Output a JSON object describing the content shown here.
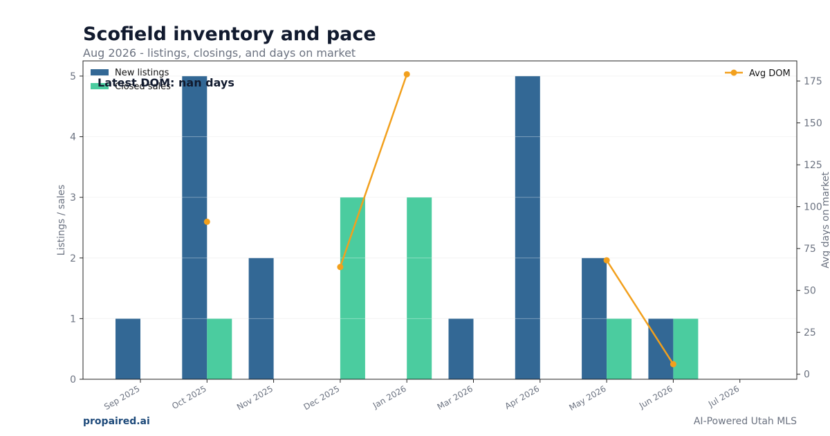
{
  "chart_data": {
    "type": "bar",
    "title": "Scofield inventory and pace",
    "subtitle": "Aug 2026 - listings, closings, and days on market",
    "categories": [
      "Sep 2025",
      "Oct 2025",
      "Nov 2025",
      "Dec 2025",
      "Jan 2026",
      "Mar 2026",
      "Apr 2026",
      "May 2026",
      "Jun 2026",
      "Jul 2026"
    ],
    "series": [
      {
        "name": "New listings",
        "type": "bar",
        "axis": "left",
        "color": "#336895",
        "values": [
          1,
          5,
          2,
          0,
          0,
          1,
          5,
          2,
          1,
          0
        ]
      },
      {
        "name": "Closed sales",
        "type": "bar",
        "axis": "left",
        "color": "#4bcc9f",
        "values": [
          0,
          1,
          0,
          3,
          3,
          0,
          0,
          1,
          1,
          0
        ]
      },
      {
        "name": "Avg DOM",
        "type": "line",
        "axis": "right",
        "color": "#f2a01d",
        "values": [
          null,
          91,
          null,
          64,
          179,
          null,
          null,
          68,
          6,
          null
        ]
      }
    ],
    "ylabel": "Listings / sales",
    "y2label": "Avg days on market",
    "ylim": [
      0,
      5.25
    ],
    "y2lim": [
      -3,
      187
    ],
    "yticks": [
      0,
      1,
      2,
      3,
      4,
      5
    ],
    "y2ticks": [
      0,
      25,
      50,
      75,
      100,
      125,
      150,
      175
    ],
    "grid": true,
    "legend_left_position": "top-left",
    "legend_right_position": "top-right",
    "annotation": "Latest DOM: nan days"
  },
  "footer": {
    "brand": "propaired.ai",
    "tagline": "AI-Powered Utah MLS"
  }
}
